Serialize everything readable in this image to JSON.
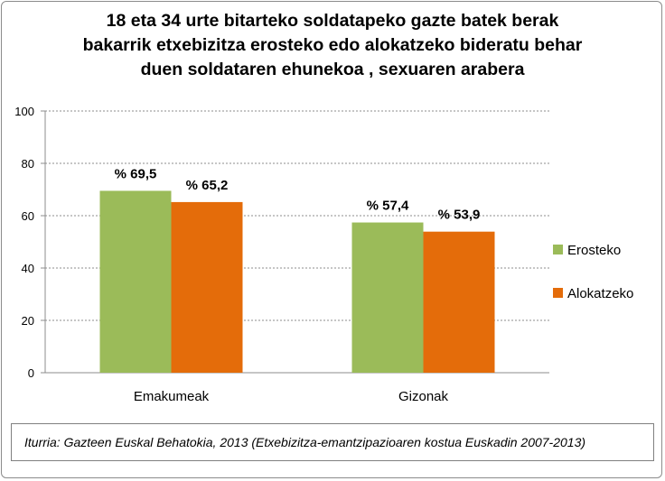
{
  "title_lines": [
    "18 eta 34 urte bitarteko soldatapeko gazte batek berak",
    "bakarrik etxebizitza erosteko edo alokatzeko bideratu behar",
    "duen soldataren ehunekoa , sexuaren arabera"
  ],
  "source_note": "Iturria: Gazteen Euskal Behatokia, 2013 (Etxebizitza-emantzipazioaren kostua Euskadin 2007-2013)",
  "chart_data": {
    "type": "bar",
    "categories": [
      "Emakumeak",
      "Gizonak"
    ],
    "series": [
      {
        "name": "Erosteko",
        "values": [
          69.5,
          57.4
        ],
        "labels": [
          "% 69,5",
          "% 57,4"
        ],
        "color": "#9bbb59"
      },
      {
        "name": "Alokatzeko",
        "values": [
          65.2,
          53.9
        ],
        "labels": [
          "% 65,2",
          "% 53,9"
        ],
        "color": "#e46c0a"
      }
    ],
    "ylim": [
      0,
      100
    ],
    "yticks": [
      "0",
      "20",
      "40",
      "60",
      "80",
      "100"
    ],
    "grid": true,
    "legend_position": "right"
  }
}
